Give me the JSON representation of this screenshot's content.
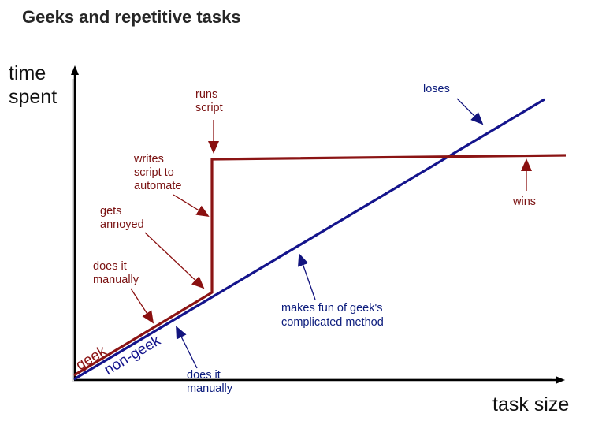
{
  "title": "Geeks and repetitive tasks",
  "axes": {
    "y_label_line1": "time",
    "y_label_line2": "spent",
    "x_label": "task size"
  },
  "lines": {
    "geek_label": "geek",
    "nongeek_label": "non-geek"
  },
  "annotations": {
    "runs_script": [
      "runs",
      "script"
    ],
    "writes_script": [
      "writes",
      "script to",
      "automate"
    ],
    "gets_annoyed": [
      "gets",
      "annoyed"
    ],
    "geek_does_manually": [
      "does it",
      "manually"
    ],
    "nongeek_does_manually": [
      "does it",
      "manually"
    ],
    "loses": "loses",
    "wins": "wins",
    "makes_fun": [
      "makes fun of geek's",
      "complicated method"
    ]
  },
  "colors": {
    "geek": "#8b1414",
    "nongeek": "#14148c",
    "red_text": "#7a1212",
    "blue_text": "#0b1b7c",
    "red_arrow": "#8a1010",
    "blue_arrow": "#12147e",
    "axis": "#000000",
    "axis_guide": "#d4d4d4",
    "title": "#262626"
  }
}
